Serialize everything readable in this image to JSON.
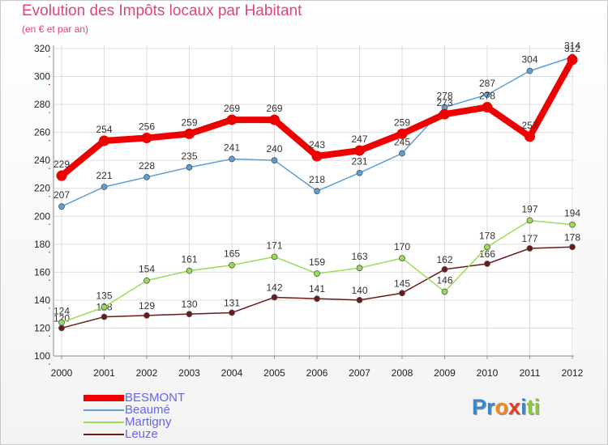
{
  "header": {
    "title": "Evolution des Impôts locaux par Habitant",
    "subtitle": "(en € et par an)"
  },
  "logo": {
    "text": "Proxiti",
    "letters": [
      {
        "ch": "P",
        "color": "#3a86c8"
      },
      {
        "ch": "r",
        "color": "#3a86c8"
      },
      {
        "ch": "o",
        "color": "#f08a1c"
      },
      {
        "ch": "x",
        "color": "#e63a2e"
      },
      {
        "ch": "i",
        "color": "#3a86c8"
      },
      {
        "ch": "t",
        "color": "#8cc63e"
      },
      {
        "ch": "i",
        "color": "#8cc63e"
      }
    ]
  },
  "chart_data": {
    "type": "line",
    "title": "Evolution des Impôts locaux par Habitant",
    "subtitle": "(en € et par an)",
    "xlabel": "",
    "ylabel": "",
    "x": [
      "2000",
      "2001",
      "2002",
      "2003",
      "2004",
      "2005",
      "2006",
      "2007",
      "2008",
      "2009",
      "2010",
      "2011",
      "2012"
    ],
    "ylim": [
      100,
      320
    ],
    "yticks": [
      100,
      120,
      140,
      160,
      180,
      200,
      220,
      240,
      260,
      280,
      300,
      320
    ],
    "grid": true,
    "legend_position": "bottom-left",
    "series": [
      {
        "name": "BESMONT",
        "color": "#ee0000",
        "values": [
          229,
          254,
          256,
          259,
          269,
          269,
          243,
          247,
          259,
          273,
          278,
          257,
          312
        ]
      },
      {
        "name": "Beaumé",
        "color": "#5c9fd6",
        "values": [
          207,
          221,
          228,
          235,
          241,
          240,
          218,
          231,
          245,
          278,
          287,
          304,
          314
        ]
      },
      {
        "name": "Martigny",
        "color": "#99dd55",
        "values": [
          124,
          135,
          154,
          161,
          165,
          171,
          159,
          163,
          170,
          146,
          178,
          197,
          194
        ]
      },
      {
        "name": "Leuze",
        "color": "#6a1a1a",
        "values": [
          120,
          128,
          129,
          130,
          131,
          142,
          141,
          140,
          145,
          162,
          166,
          177,
          178
        ]
      }
    ]
  }
}
